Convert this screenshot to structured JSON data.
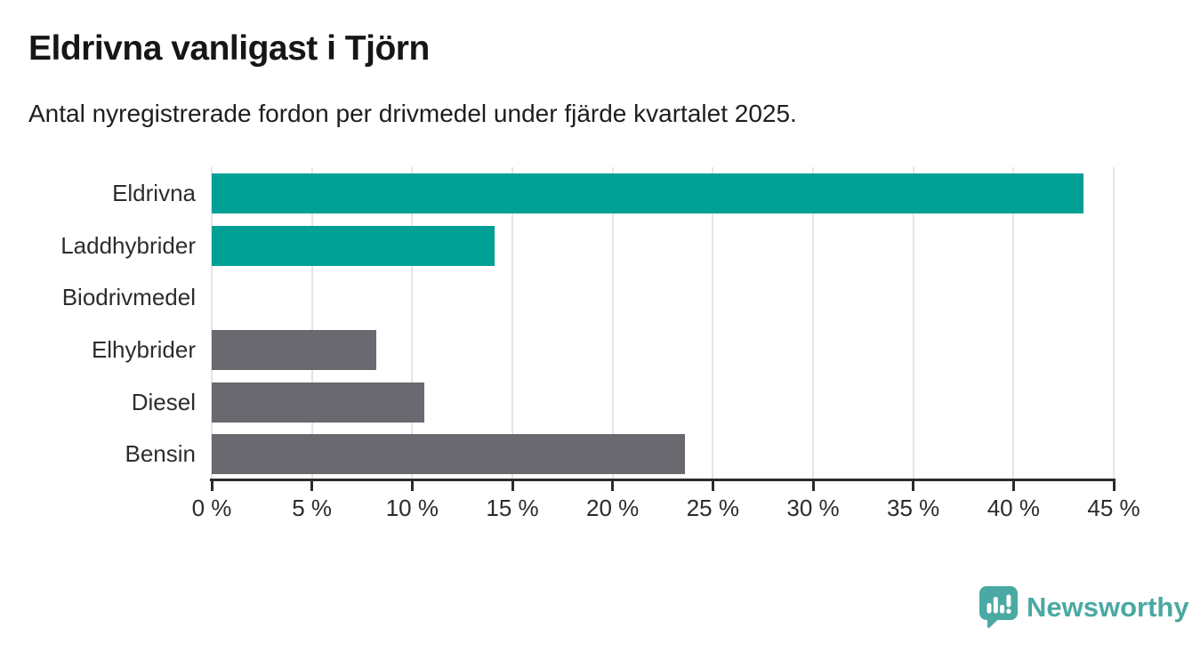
{
  "chart_data": {
    "type": "bar",
    "orientation": "horizontal",
    "title": "Eldrivna vanligast i Tjörn",
    "subtitle": "Antal nyregistrerade fordon per drivmedel under fjärde kvartalet 2025.",
    "categories": [
      "Eldrivna",
      "Laddhybrider",
      "Biodrivmedel",
      "Elhybrider",
      "Diesel",
      "Bensin"
    ],
    "values": [
      43.5,
      14.1,
      0,
      8.2,
      10.6,
      23.6
    ],
    "value_unit": "%",
    "bar_colors": [
      "#00a096",
      "#00a096",
      "#69696f",
      "#69696f",
      "#69696f",
      "#69696f"
    ],
    "xlabel": "",
    "ylabel": "",
    "xlim": [
      0,
      45
    ],
    "x_ticks": [
      0,
      5,
      10,
      15,
      20,
      25,
      30,
      35,
      40,
      45
    ],
    "x_tick_labels": [
      "0 %",
      "5 %",
      "10 %",
      "15 %",
      "20 %",
      "25 %",
      "30 %",
      "35 %",
      "40 %",
      "45 %"
    ],
    "grid": "vertical gridlines only",
    "legend": "none"
  },
  "colors": {
    "highlight": "#00a096",
    "muted": "#69696f",
    "gridline": "#e5e5e7",
    "axis": "#2b2b2b",
    "title_text": "#161616",
    "label_text": "#2d2d2d",
    "brand": "#4aa9a2",
    "background": "#ffffff"
  },
  "footer": {
    "brand": "Newsworthy",
    "logo_icon": "newsworthy-pin-bar-chart-icon"
  }
}
